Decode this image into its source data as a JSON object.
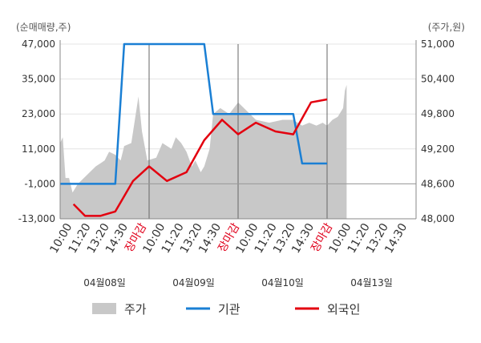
{
  "chart_data": {
    "type": "line",
    "left_axis_unit": "(순매매량,주)",
    "right_axis_unit": "(주가,원)",
    "left_ticks": [
      47000,
      35000,
      23000,
      11000,
      -1000,
      -13000
    ],
    "left_tick_labels": [
      "47,000",
      "35,000",
      "23,000",
      "11,000",
      "-1,000",
      "-13,000"
    ],
    "right_ticks": [
      51000,
      50400,
      49800,
      49200,
      48600,
      48000
    ],
    "right_tick_labels": [
      "51,000",
      "50,400",
      "49,800",
      "49,200",
      "48,600",
      "48,000"
    ],
    "left_ylim": [
      -13000,
      47000
    ],
    "right_ylim": [
      48000,
      51000
    ],
    "x_labels": [
      "10:00",
      "11:20",
      "13:20",
      "14:30",
      "장마감",
      "10:00",
      "11:20",
      "13:20",
      "14:30",
      "장마감",
      "10:00",
      "11:20",
      "13:20",
      "14:30",
      "장마감",
      "10:00",
      "11:20",
      "13:20",
      "14:30"
    ],
    "close_label": "장마감",
    "dates": [
      "04월08일",
      "04월09일",
      "04월10일",
      "04월13일"
    ],
    "day_slots": 4,
    "legend": [
      {
        "name": "주가",
        "color": "#c8c8c8",
        "kind": "area"
      },
      {
        "name": "기관",
        "color": "#1a7fd4",
        "kind": "line"
      },
      {
        "name": "외국인",
        "color": "#e3000f",
        "kind": "line"
      }
    ],
    "institution": {
      "name": "기관",
      "color": "#1a7fd4",
      "x": [
        0,
        0.62,
        0.72,
        1.0,
        1.62,
        1.72,
        2.0,
        2.62,
        2.72,
        3.0
      ],
      "values": [
        -1000,
        -1000,
        47000,
        47000,
        47000,
        23000,
        23000,
        23000,
        6000,
        6000
      ]
    },
    "foreign": {
      "name": "외국인",
      "color": "#e3000f",
      "x": [
        0.15,
        0.28,
        0.45,
        0.62,
        0.82,
        1.0,
        1.2,
        1.42,
        1.62,
        1.82,
        2.0,
        2.2,
        2.42,
        2.62,
        2.82,
        3.0
      ],
      "values": [
        -8000,
        -12000,
        -12000,
        -10500,
        0,
        5000,
        0,
        3000,
        14000,
        21000,
        16000,
        20000,
        17000,
        16000,
        27000,
        28000
      ]
    },
    "price": {
      "name": "주가",
      "color": "#c8c8c8",
      "x": [
        0,
        0.03,
        0.06,
        0.1,
        0.14,
        0.2,
        0.3,
        0.4,
        0.5,
        0.55,
        0.62,
        0.68,
        0.72,
        0.8,
        0.88,
        0.92,
        0.98,
        1.08,
        1.15,
        1.25,
        1.3,
        1.36,
        1.42,
        1.48,
        1.52,
        1.58,
        1.62,
        1.68,
        1.72,
        1.8,
        1.9,
        2.0,
        2.1,
        2.2,
        2.35,
        2.5,
        2.62,
        2.72,
        2.8,
        2.88,
        2.95,
        3.0,
        3.06,
        3.12,
        3.18,
        3.2,
        3.22
      ],
      "values": [
        49300,
        49400,
        48700,
        48700,
        48450,
        48600,
        48750,
        48900,
        49000,
        49150,
        49100,
        49000,
        49250,
        49300,
        50100,
        49500,
        49000,
        49050,
        49300,
        49200,
        49400,
        49300,
        49150,
        48900,
        49000,
        48800,
        48900,
        49200,
        49800,
        49900,
        49800,
        50000,
        49850,
        49700,
        49650,
        49700,
        49700,
        49600,
        49650,
        49600,
        49650,
        49600,
        49700,
        49750,
        49900,
        50200,
        50300
      ]
    }
  }
}
